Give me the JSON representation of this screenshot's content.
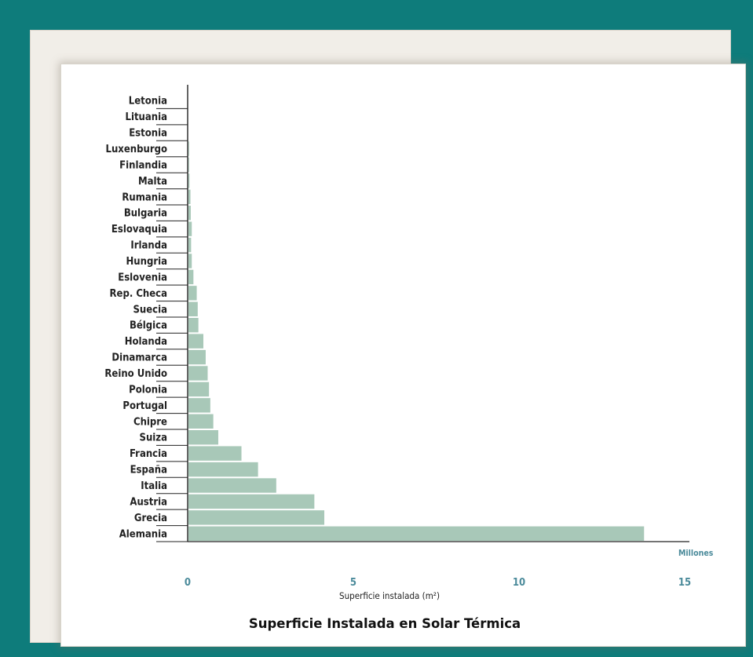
{
  "chart_data": {
    "type": "bar",
    "orientation": "horizontal",
    "title": "Superficie Instalada en Solar Térmica",
    "xlabel": "Superficie instalada (m²)",
    "x_unit_label": "Millones",
    "xlim": [
      0,
      15
    ],
    "x_ticks": [
      "0",
      "5",
      "10",
      "15"
    ],
    "categories": [
      "Letonia",
      "Lituania",
      "Estonia",
      "Luxenburgo",
      "Finlandia",
      "Malta",
      "Rumania",
      "Bulgaria",
      "Eslovaquia",
      "Irlanda",
      "Hungria",
      "Eslovenia",
      "Rep. Checa",
      "Suecia",
      "Bélgica",
      "Holanda",
      "Dinamarca",
      "Reino Unido",
      "Polonia",
      "Portugal",
      "Chipre",
      "Suiza",
      "Francia",
      "España",
      "Italia",
      "Austria",
      "Grecia",
      "Alemania"
    ],
    "values": [
      0.0,
      0.0,
      0.0,
      0.02,
      0.02,
      0.03,
      0.06,
      0.07,
      0.1,
      0.08,
      0.1,
      0.15,
      0.25,
      0.28,
      0.3,
      0.45,
      0.52,
      0.58,
      0.62,
      0.66,
      0.75,
      0.9,
      1.6,
      2.1,
      2.65,
      3.8,
      4.1,
      13.75
    ],
    "bar_color": "#a8c8b8",
    "grid": false,
    "legend": "none"
  }
}
